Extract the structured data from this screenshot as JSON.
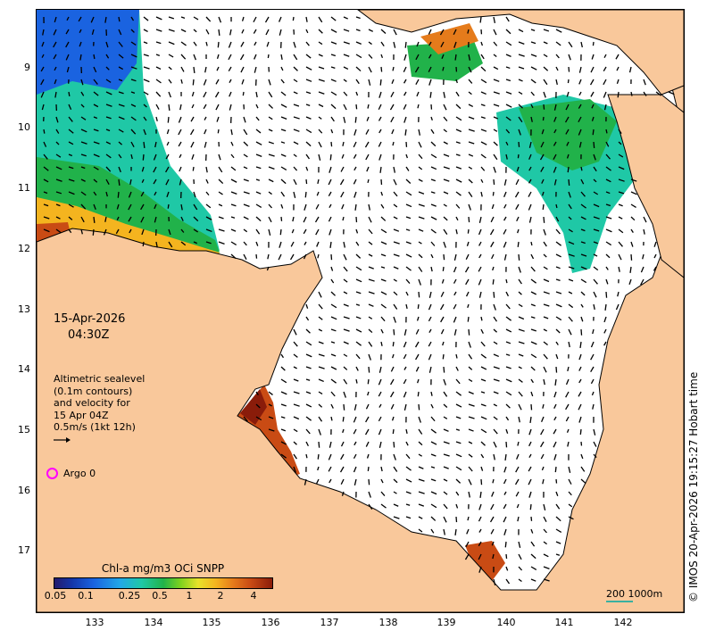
{
  "map": {
    "lat_ticks": [
      "9",
      "10",
      "11",
      "12",
      "13",
      "14",
      "15",
      "16",
      "17"
    ],
    "lon_ticks": [
      "133",
      "134",
      "135",
      "136",
      "137",
      "138",
      "139",
      "140",
      "141",
      "142"
    ],
    "land_color": "#f9c89b",
    "sea_color": "#ffffff"
  },
  "date": {
    "day": "15-Apr-2026",
    "time": "04:30Z"
  },
  "info": {
    "line1": "Altimetric sealevel",
    "line2": "(0.1m contours)",
    "line3": "and velocity for",
    "line4": "15 Apr 04Z",
    "line5": "0.5m/s (1kt 12h)"
  },
  "argo": {
    "label": "Argo 0",
    "color": "#ff00ff"
  },
  "colorbar": {
    "title": "Chl-a mg/m3 OCi SNPP",
    "ticks": [
      "0.05",
      "0.1",
      "0.25",
      "0.5",
      "1",
      "2",
      "4"
    ]
  },
  "scale": {
    "label": "200  1000m"
  },
  "credit": "© IMOS 20-Apr-2026 19:15:27 Hobart time"
}
